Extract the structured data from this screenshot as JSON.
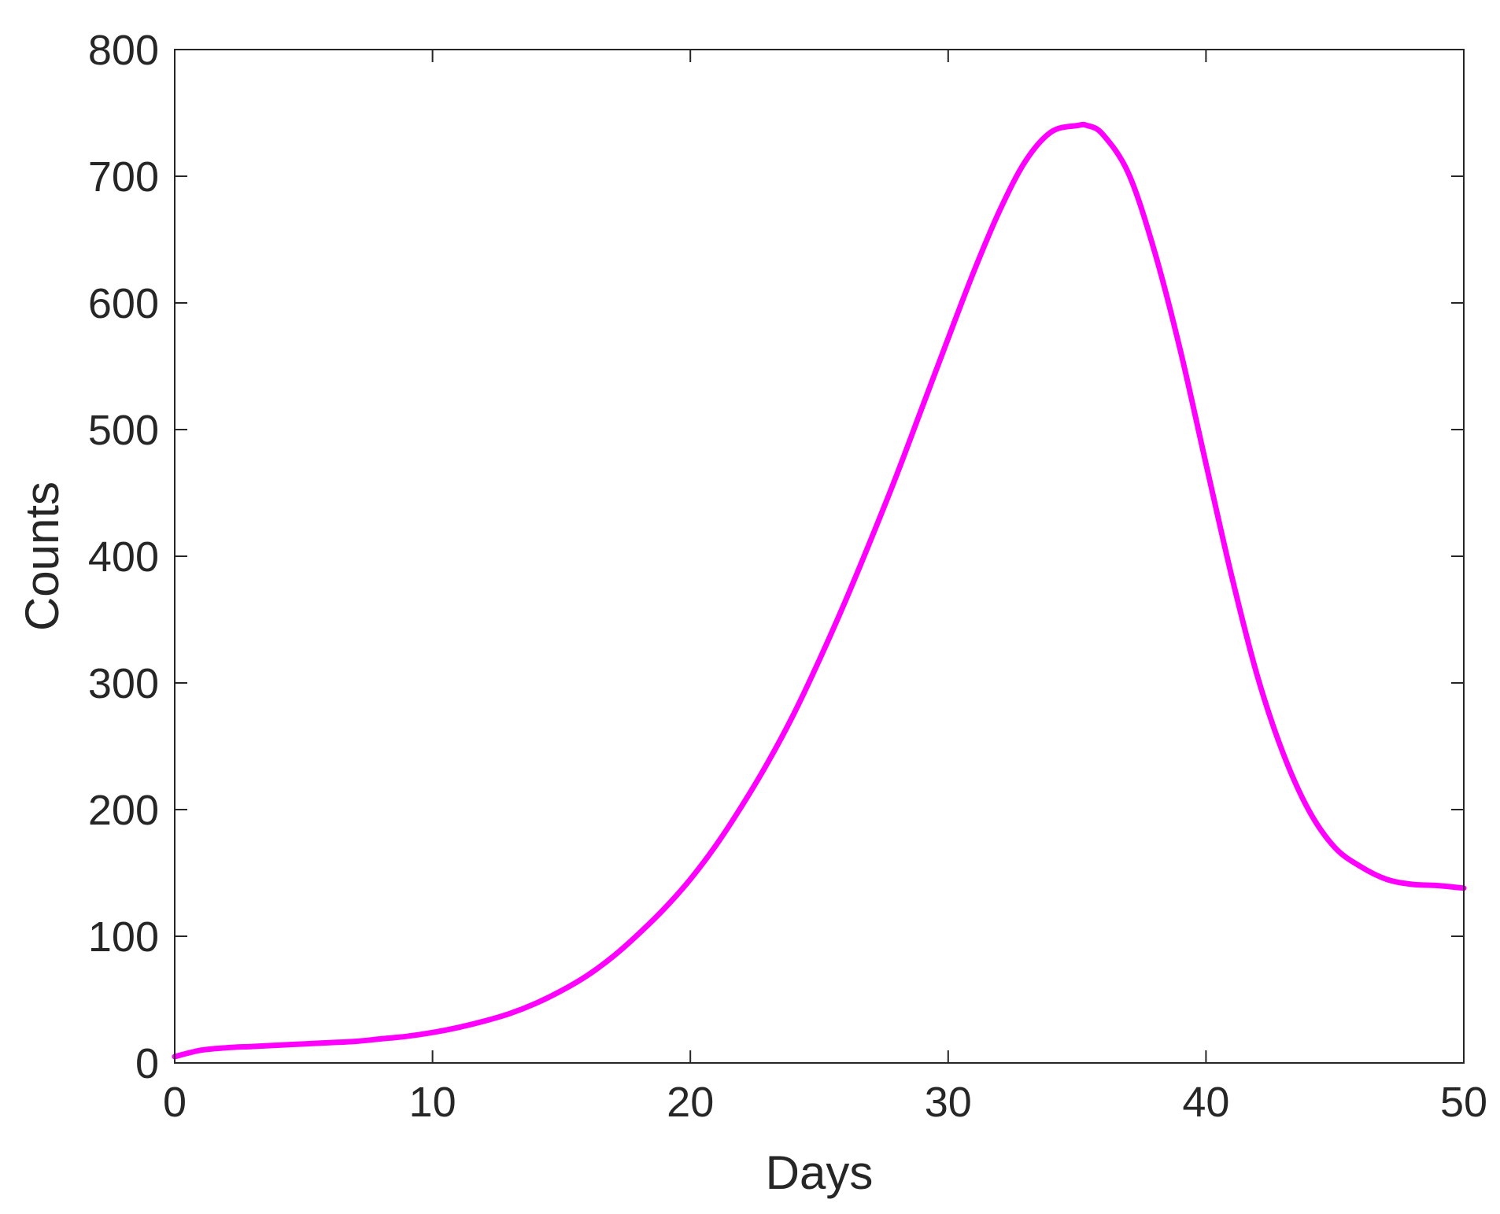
{
  "chart_data": {
    "type": "line",
    "title": "",
    "xlabel": "Days",
    "ylabel": "Counts",
    "xlim": [
      0,
      50
    ],
    "ylim": [
      0,
      800
    ],
    "xticks": [
      0,
      10,
      20,
      30,
      40,
      50
    ],
    "yticks": [
      0,
      100,
      200,
      300,
      400,
      500,
      600,
      700,
      800
    ],
    "xtick_labels": [
      "0",
      "10",
      "20",
      "30",
      "40",
      "50"
    ],
    "ytick_labels": [
      "0",
      "100",
      "200",
      "300",
      "400",
      "500",
      "600",
      "700",
      "800"
    ],
    "grid": false,
    "legend": "none",
    "series": [
      {
        "color": "#ff00ff",
        "x": [
          0,
          1,
          2,
          3,
          4,
          5,
          6,
          7,
          8,
          9,
          10,
          11,
          12,
          13,
          14,
          15,
          16,
          17,
          18,
          19,
          20,
          21,
          22,
          23,
          24,
          25,
          26,
          27,
          28,
          29,
          30,
          31,
          32,
          33,
          34,
          35,
          35.4,
          36,
          37,
          38,
          39,
          40,
          41,
          42,
          43,
          44,
          45,
          46,
          47,
          48,
          49,
          50
        ],
        "y": [
          5,
          10,
          12,
          13,
          14,
          15,
          16,
          17,
          19,
          21,
          24,
          28,
          33,
          39,
          47,
          57,
          69,
          84,
          102,
          122,
          145,
          172,
          203,
          237,
          275,
          318,
          364,
          413,
          464,
          518,
          572,
          625,
          673,
          712,
          735,
          740,
          740,
          733,
          702,
          641,
          563,
          473,
          384,
          305,
          244,
          199,
          170,
          155,
          145,
          141,
          140,
          138
        ]
      }
    ]
  }
}
